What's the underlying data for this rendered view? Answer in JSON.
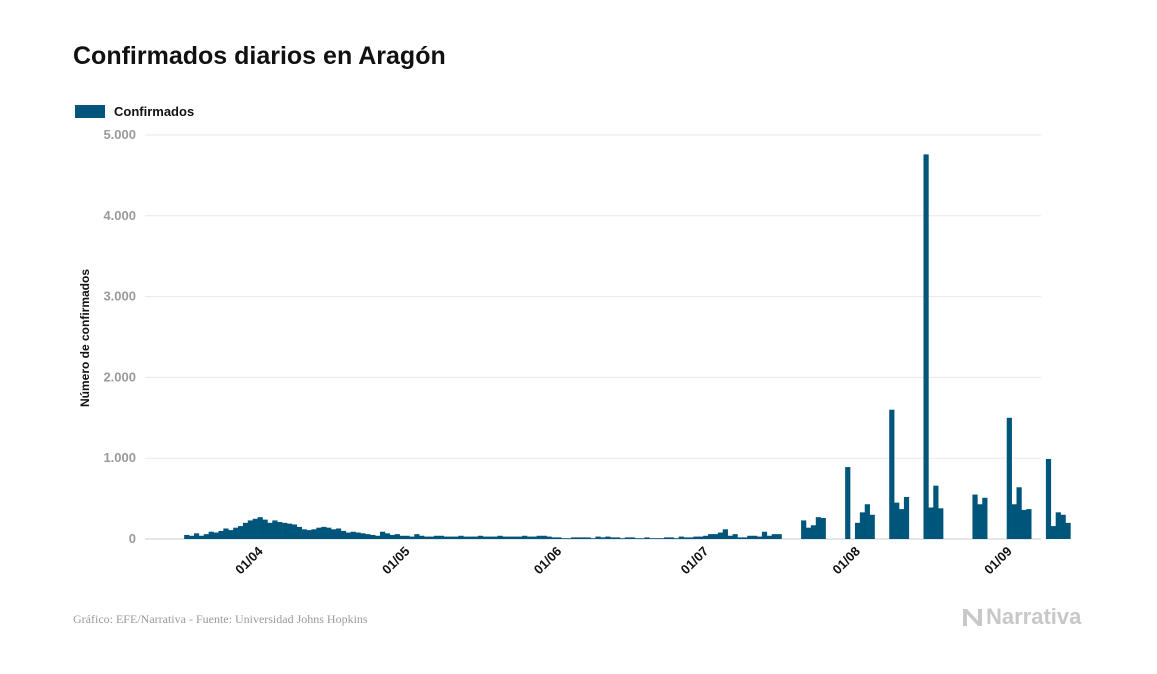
{
  "colors": {
    "bar": "#00557a",
    "grid": "#e8e8e8",
    "tick": "#9a9a9a",
    "baseline": "#cccccc"
  },
  "chart_data": {
    "type": "bar",
    "title": "Confirmados diarios en Aragón",
    "ylabel": "Número de confirmados",
    "xlabel": "",
    "ylim": [
      0,
      5000
    ],
    "yticks": [
      0,
      1000,
      2000,
      3000,
      4000,
      5000
    ],
    "ytick_labels": [
      "0",
      "1.000",
      "2.000",
      "3.000",
      "4.000",
      "5.000"
    ],
    "x_start_date": "2020-03-09",
    "x_end_date": "2020-09-08",
    "xtick_dates": [
      "2020-04-01",
      "2020-05-01",
      "2020-06-01",
      "2020-07-01",
      "2020-08-01",
      "2020-09-01"
    ],
    "xtick_labels": [
      "01/04",
      "01/05",
      "01/06",
      "01/07",
      "01/08",
      "01/09"
    ],
    "legend": "top-left",
    "grid": true,
    "series": [
      {
        "name": "Confirmados",
        "start_date": "2020-03-17",
        "values": [
          50,
          40,
          70,
          40,
          60,
          90,
          80,
          100,
          130,
          110,
          140,
          160,
          200,
          230,
          250,
          270,
          240,
          200,
          230,
          210,
          200,
          190,
          180,
          150,
          120,
          110,
          120,
          140,
          150,
          140,
          120,
          130,
          100,
          80,
          90,
          80,
          70,
          60,
          50,
          40,
          90,
          70,
          50,
          60,
          40,
          40,
          30,
          60,
          40,
          30,
          30,
          40,
          40,
          30,
          30,
          30,
          40,
          30,
          30,
          30,
          40,
          30,
          30,
          30,
          40,
          30,
          30,
          30,
          30,
          40,
          30,
          30,
          40,
          40,
          30,
          20,
          20,
          10,
          10,
          20,
          20,
          20,
          20,
          10,
          30,
          20,
          30,
          20,
          20,
          10,
          20,
          20,
          10,
          10,
          20,
          10,
          10,
          10,
          20,
          20,
          10,
          30,
          20,
          20,
          30,
          30,
          40,
          60,
          60,
          80,
          120,
          40,
          60,
          20,
          20,
          40,
          40,
          30,
          90,
          40,
          60,
          60,
          0,
          0,
          0,
          0,
          230,
          140,
          170,
          270,
          260,
          0,
          0,
          0,
          0,
          890,
          0,
          200,
          330,
          430,
          300,
          0,
          0,
          0,
          1600,
          450,
          370,
          520,
          0,
          0,
          0,
          4760,
          390,
          660,
          380,
          0,
          0,
          0,
          0,
          0,
          0,
          550,
          430,
          510,
          0,
          0,
          0,
          0,
          1500,
          430,
          640,
          360,
          370,
          0,
          0,
          0,
          990,
          160,
          330,
          300,
          200,
          0,
          0,
          0,
          0
        ]
      }
    ]
  },
  "footer": {
    "source": "Gráfico: EFE/Narrativa - Fuente: Universidad Johns Hopkins",
    "brand": "Narrativa"
  }
}
